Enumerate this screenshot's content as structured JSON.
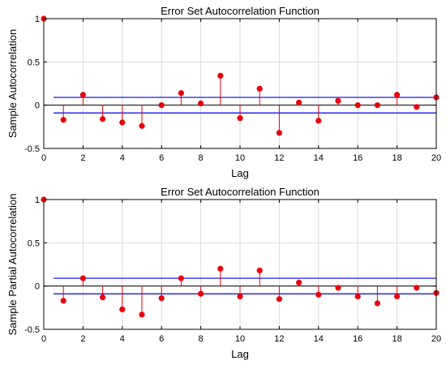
{
  "chart_data": [
    {
      "type": "stem",
      "title": "Error Set Autocorrelation Function",
      "xlabel": "Lag",
      "ylabel": "Sample Autocorrelation",
      "xlim": [
        0,
        20
      ],
      "ylim": [
        -0.5,
        1
      ],
      "xticks": [
        0,
        2,
        4,
        6,
        8,
        10,
        12,
        14,
        16,
        18,
        20
      ],
      "yticks": [
        -0.5,
        0,
        0.5,
        1
      ],
      "ytick_labels": [
        "-0.5",
        "0",
        "0.5",
        "1"
      ],
      "grid": true,
      "confidence_bounds": [
        0.09,
        -0.09
      ],
      "colors": {
        "stem": "#e8000b",
        "bounds": "#0000e6"
      },
      "x": [
        0,
        1,
        2,
        3,
        4,
        5,
        6,
        7,
        8,
        9,
        10,
        11,
        12,
        13,
        14,
        15,
        16,
        17,
        18,
        19,
        20
      ],
      "values": [
        1.0,
        -0.17,
        0.12,
        -0.16,
        -0.2,
        -0.24,
        0.0,
        0.14,
        0.02,
        0.34,
        -0.15,
        0.19,
        -0.32,
        0.03,
        -0.18,
        0.05,
        0.0,
        0.0,
        0.12,
        -0.02,
        0.09
      ]
    },
    {
      "type": "stem",
      "title": "Error Set Autocorrelation Function",
      "xlabel": "Lag",
      "ylabel": "Sample Partial Autocorrelation",
      "xlim": [
        0,
        20
      ],
      "ylim": [
        -0.5,
        1
      ],
      "xticks": [
        0,
        2,
        4,
        6,
        8,
        10,
        12,
        14,
        16,
        18,
        20
      ],
      "yticks": [
        -0.5,
        0,
        0.5,
        1
      ],
      "ytick_labels": [
        "-0.5",
        "0",
        "0.5",
        "1"
      ],
      "grid": true,
      "confidence_bounds": [
        0.09,
        -0.09
      ],
      "colors": {
        "stem": "#e8000b",
        "bounds": "#0000e6"
      },
      "x": [
        0,
        1,
        2,
        3,
        4,
        5,
        6,
        7,
        8,
        9,
        10,
        11,
        12,
        13,
        14,
        15,
        16,
        17,
        18,
        19,
        20
      ],
      "values": [
        1.0,
        -0.17,
        0.09,
        -0.13,
        -0.27,
        -0.33,
        -0.14,
        0.09,
        -0.09,
        0.2,
        -0.12,
        0.18,
        -0.15,
        0.04,
        -0.1,
        -0.02,
        -0.12,
        -0.2,
        -0.12,
        -0.02,
        -0.08
      ]
    }
  ]
}
